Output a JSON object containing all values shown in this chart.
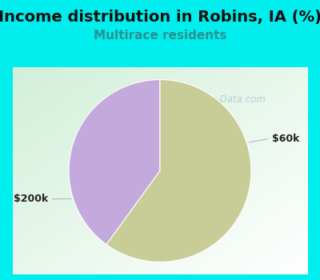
{
  "title": "Income distribution in Robins, IA (%)",
  "subtitle": "Multirace residents",
  "title_fontsize": 14,
  "subtitle_fontsize": 11,
  "title_color": "#111111",
  "subtitle_color": "#2a9090",
  "background_color": "#00EEEE",
  "chart_bg_start": "#f0f8f0",
  "chart_bg_end": "#ffffff",
  "slices": [
    {
      "label": "$60k",
      "value": 40,
      "color": "#C4AADC"
    },
    {
      "label": "$200k",
      "value": 60,
      "color": "#C8CC96"
    }
  ],
  "watermark": "City-Data.com",
  "watermark_color": "#AABBCC",
  "label_fontsize": 9,
  "label_color": "#222222",
  "start_angle": 90
}
